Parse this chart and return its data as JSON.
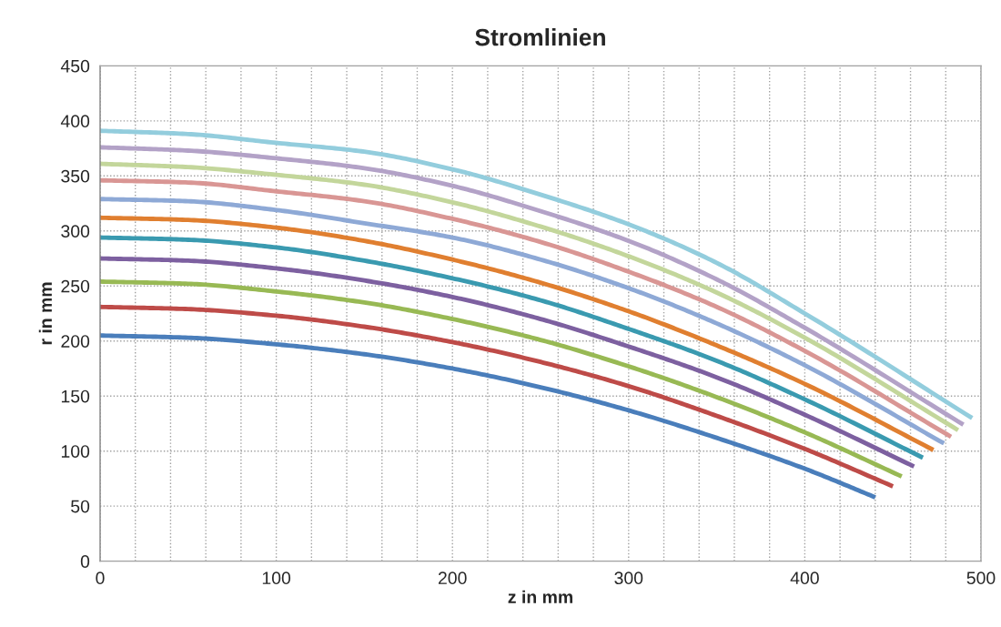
{
  "chart_data": {
    "type": "line",
    "title": "Stromlinien",
    "xlabel": "z in mm",
    "ylabel": "r in mm",
    "xlim": [
      0,
      500
    ],
    "ylim": [
      0,
      450
    ],
    "xticks": [
      0,
      {
        "value": 20,
        "label": null
      },
      {
        "value": 40,
        "label": null
      },
      {
        "value": 60,
        "label": null
      },
      {
        "value": 80,
        "label": null
      },
      100,
      {
        "value": 120,
        "label": null
      },
      {
        "value": 140,
        "label": null
      },
      {
        "value": 160,
        "label": null
      },
      {
        "value": 180,
        "label": null
      },
      200,
      {
        "value": 220,
        "label": null
      },
      {
        "value": 240,
        "label": null
      },
      {
        "value": 260,
        "label": null
      },
      {
        "value": 280,
        "label": null
      },
      300,
      {
        "value": 320,
        "label": null
      },
      {
        "value": 340,
        "label": null
      },
      {
        "value": 360,
        "label": null
      },
      {
        "value": 380,
        "label": null
      },
      400,
      {
        "value": 420,
        "label": null
      },
      {
        "value": 440,
        "label": null
      },
      {
        "value": 460,
        "label": null
      },
      {
        "value": 480,
        "label": null
      },
      500
    ],
    "yticks": [
      0,
      50,
      100,
      150,
      200,
      250,
      300,
      350,
      400,
      450
    ],
    "grid": true,
    "marker": "none",
    "line_style": "solid",
    "series": [
      {
        "color": "#4a7ebb",
        "x": [
          0,
          50,
          100,
          150,
          200,
          250,
          300,
          350,
          400,
          440
        ],
        "values": [
          205,
          203,
          197,
          188,
          175,
          158,
          137,
          112,
          84,
          58
        ]
      },
      {
        "color": "#be4b48",
        "x": [
          0,
          50,
          100,
          150,
          200,
          250,
          300,
          350,
          400,
          450
        ],
        "values": [
          231,
          229,
          223,
          213,
          199,
          181,
          159,
          132,
          102,
          68
        ]
      },
      {
        "color": "#98b954",
        "x": [
          0,
          50,
          100,
          150,
          200,
          250,
          300,
          350,
          400,
          455
        ],
        "values": [
          254,
          252,
          245,
          235,
          220,
          201,
          177,
          149,
          117,
          77
        ]
      },
      {
        "color": "#7d60a0",
        "x": [
          0,
          50,
          100,
          150,
          200,
          250,
          300,
          350,
          400,
          462
        ],
        "values": [
          275,
          273,
          266,
          255,
          240,
          220,
          195,
          167,
          133,
          86
        ]
      },
      {
        "color": "#3a9ab0",
        "x": [
          0,
          50,
          100,
          150,
          200,
          250,
          300,
          350,
          400,
          467
        ],
        "values": [
          294,
          292,
          285,
          273,
          257,
          237,
          211,
          182,
          147,
          94
        ]
      },
      {
        "color": "#e07f30",
        "x": [
          0,
          50,
          100,
          150,
          200,
          250,
          300,
          350,
          400,
          473
        ],
        "values": [
          312,
          310,
          303,
          291,
          274,
          253,
          227,
          196,
          161,
          101
        ]
      },
      {
        "color": "#8ea9d6",
        "x": [
          0,
          50,
          100,
          150,
          200,
          250,
          300,
          350,
          400,
          479
        ],
        "values": [
          329,
          327,
          319,
          307,
          294,
          274,
          248,
          216,
          178,
          107
        ]
      },
      {
        "color": "#d99694",
        "x": [
          0,
          50,
          100,
          150,
          200,
          250,
          300,
          350,
          400,
          483
        ],
        "values": [
          346,
          344,
          336,
          327,
          311,
          290,
          263,
          231,
          191,
          113
        ]
      },
      {
        "color": "#c3d69b",
        "x": [
          0,
          50,
          100,
          150,
          200,
          250,
          300,
          350,
          400,
          487
        ],
        "values": [
          361,
          358,
          351,
          342,
          326,
          304,
          277,
          244,
          203,
          119
        ]
      },
      {
        "color": "#b3a2c7",
        "x": [
          0,
          50,
          100,
          150,
          200,
          250,
          300,
          350,
          400,
          490
        ],
        "values": [
          376,
          373,
          366,
          357,
          341,
          318,
          291,
          256,
          212,
          124
        ]
      },
      {
        "color": "#93cddd",
        "x": [
          0,
          50,
          100,
          150,
          200,
          250,
          300,
          350,
          400,
          495
        ],
        "values": [
          391,
          388,
          380,
          372,
          356,
          333,
          306,
          271,
          225,
          130
        ]
      }
    ]
  }
}
